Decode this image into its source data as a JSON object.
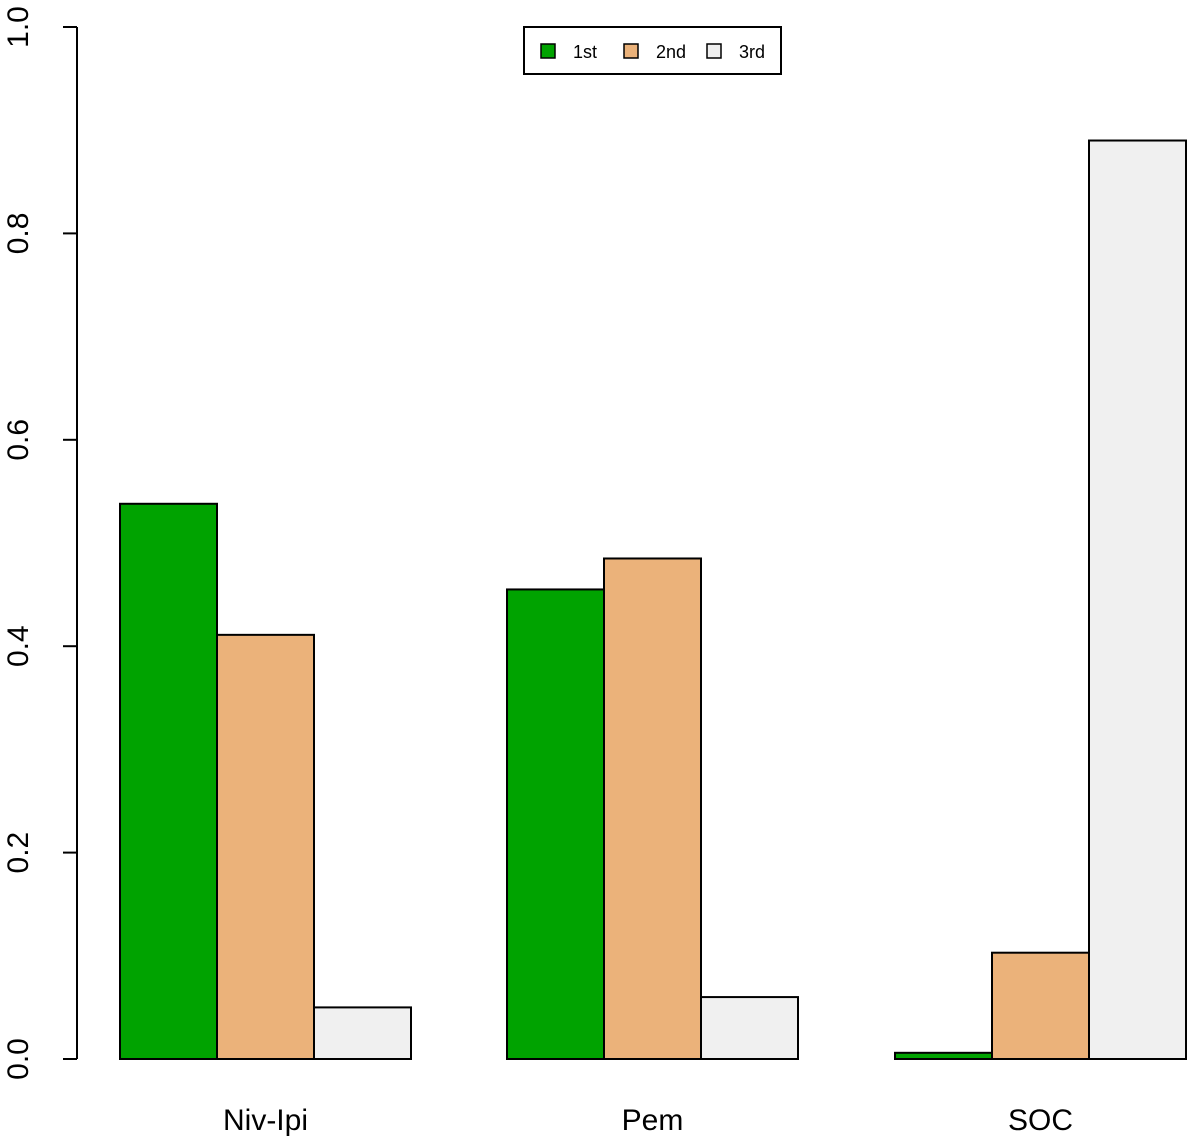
{
  "chart_data": {
    "type": "bar",
    "categories": [
      "Niv-Ipi",
      "Pem",
      "SOC"
    ],
    "series": [
      {
        "name": "1st",
        "color": "#00A300",
        "values": [
          0.538,
          0.455,
          0.006
        ]
      },
      {
        "name": "2nd",
        "color": "#EBB27A",
        "values": [
          0.411,
          0.485,
          0.103
        ]
      },
      {
        "name": "3rd",
        "color": "#F0F0F0",
        "values": [
          0.05,
          0.06,
          0.89
        ]
      }
    ],
    "ylim": [
      0,
      1.0
    ],
    "yticks": [
      "0.0",
      "0.2",
      "0.4",
      "0.6",
      "0.8",
      "1.0"
    ],
    "legend_position": "top-center",
    "grid": false
  }
}
